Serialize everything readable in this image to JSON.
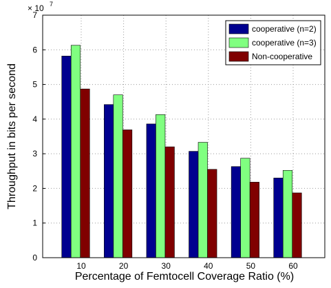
{
  "chart_data": {
    "type": "bar",
    "xlabel": "Percentage of Femtocell Coverage Ratio (%)",
    "ylabel": "Throughput in bits per second",
    "y_multiplier_base": "× 10",
    "y_multiplier_exponent": "7",
    "categories": [
      "10",
      "20",
      "30",
      "40",
      "50",
      "60"
    ],
    "series": [
      {
        "name": "cooperative (n=2)",
        "color": "#00008f",
        "values": [
          5.82,
          4.42,
          3.86,
          3.07,
          2.63,
          2.3
        ]
      },
      {
        "name": "cooperative (n=3)",
        "color": "#80ff80",
        "values": [
          6.13,
          4.7,
          4.13,
          3.33,
          2.87,
          2.52
        ]
      },
      {
        "name": "Non-cooperative",
        "color": "#800000",
        "values": [
          4.87,
          3.69,
          3.2,
          2.55,
          2.18,
          1.87
        ]
      }
    ],
    "ylim": [
      0,
      7
    ],
    "yticks": [
      0,
      1,
      2,
      3,
      4,
      5,
      6,
      7
    ],
    "grid": true,
    "legend": "top-right"
  }
}
